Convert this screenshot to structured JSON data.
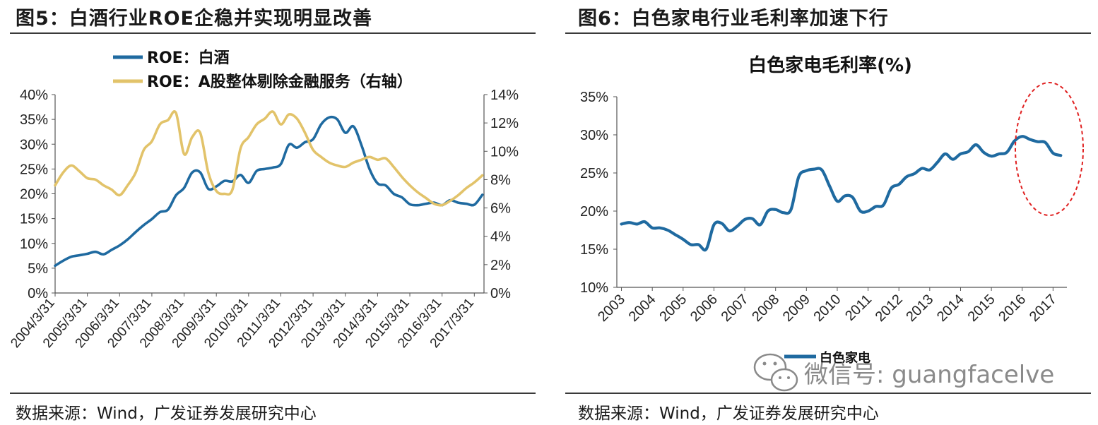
{
  "left_panel": {
    "title": "图5：白酒行业ROE企稳并实现明显改善",
    "source": "数据来源：Wind，广发证券发展研究中心"
  },
  "right_panel": {
    "title": "图6：白色家电行业毛利率加速下行",
    "source": "数据来源：Wind，广发证券发展研究中心"
  },
  "watermark": {
    "text": "微信号: guangfacelve",
    "icon": "wechat-icon"
  },
  "colors": {
    "blue": "#1f6aa0",
    "gold": "#e2c36a",
    "highlight": "#e02020"
  },
  "chart_data": [
    {
      "type": "line",
      "title": "",
      "xlabel": "",
      "ylabel": "",
      "x_tick_labels": [
        "2004/3/31",
        "2005/3/31",
        "2006/3/31",
        "2007/3/31",
        "2008/3/31",
        "2009/3/31",
        "2010/3/31",
        "2011/3/31",
        "2012/3/31",
        "2013/3/31",
        "2014/3/31",
        "2015/3/31",
        "2016/3/31",
        "2017/3/31"
      ],
      "y_left_ticks": [
        "0%",
        "5%",
        "10%",
        "15%",
        "20%",
        "25%",
        "30%",
        "35%",
        "40%"
      ],
      "y_right_ticks": [
        "0%",
        "2%",
        "4%",
        "6%",
        "8%",
        "10%",
        "12%",
        "14%"
      ],
      "ylim_left": [
        0,
        40
      ],
      "ylim_right": [
        0,
        14
      ],
      "legend_position": "top-left",
      "series": [
        {
          "name": "ROE：白酒",
          "axis": "left",
          "color": "#1f6aa0",
          "x": [
            2004.0,
            2004.25,
            2004.5,
            2004.75,
            2005.0,
            2005.25,
            2005.5,
            2005.75,
            2006.0,
            2006.25,
            2006.5,
            2006.75,
            2007.0,
            2007.25,
            2007.5,
            2007.75,
            2008.0,
            2008.25,
            2008.5,
            2008.75,
            2009.0,
            2009.25,
            2009.5,
            2009.75,
            2010.0,
            2010.25,
            2010.5,
            2010.75,
            2011.0,
            2011.25,
            2011.5,
            2011.75,
            2012.0,
            2012.25,
            2012.5,
            2012.75,
            2013.0,
            2013.25,
            2013.5,
            2013.75,
            2014.0,
            2014.25,
            2014.5,
            2014.75,
            2015.0,
            2015.25,
            2015.5,
            2015.75,
            2016.0,
            2016.25,
            2016.5,
            2016.75,
            2017.0,
            2017.25
          ],
          "values": [
            5.5,
            6.5,
            7.3,
            7.6,
            7.9,
            8.3,
            7.8,
            8.7,
            9.6,
            10.8,
            12.3,
            13.7,
            14.9,
            16.3,
            16.8,
            19.7,
            21.2,
            24.3,
            24.3,
            21.0,
            21.5,
            22.6,
            22.5,
            23.8,
            22.2,
            24.6,
            25.0,
            25.3,
            26.0,
            29.9,
            29.3,
            30.4,
            31.0,
            34.0,
            35.4,
            35.0,
            32.3,
            33.6,
            29.8,
            25.0,
            22.1,
            21.7,
            20.0,
            19.3,
            17.9,
            17.7,
            18.0,
            18.2,
            17.7,
            18.7,
            18.2,
            18.0,
            17.8,
            19.8
          ]
        },
        {
          "name": "ROE：A股整体剔除金融服务（右轴）",
          "axis": "right",
          "color": "#e2c36a",
          "x": [
            2004.0,
            2004.25,
            2004.5,
            2004.75,
            2005.0,
            2005.25,
            2005.5,
            2005.75,
            2006.0,
            2006.25,
            2006.5,
            2006.75,
            2007.0,
            2007.25,
            2007.5,
            2007.75,
            2008.0,
            2008.25,
            2008.5,
            2008.75,
            2009.0,
            2009.25,
            2009.5,
            2009.75,
            2010.0,
            2010.25,
            2010.5,
            2010.75,
            2011.0,
            2011.25,
            2011.5,
            2011.75,
            2012.0,
            2012.25,
            2012.5,
            2012.75,
            2013.0,
            2013.25,
            2013.5,
            2013.75,
            2014.0,
            2014.25,
            2014.5,
            2014.75,
            2015.0,
            2015.25,
            2015.5,
            2015.75,
            2016.0,
            2016.25,
            2016.5,
            2016.75,
            2017.0,
            2017.25
          ],
          "values": [
            7.6,
            8.5,
            9.0,
            8.6,
            8.1,
            8.0,
            7.6,
            7.3,
            6.9,
            7.6,
            8.5,
            10.1,
            10.7,
            11.9,
            12.2,
            12.7,
            9.8,
            11.0,
            11.3,
            8.5,
            7.2,
            7.0,
            7.3,
            10.2,
            11.0,
            11.9,
            12.3,
            12.8,
            11.9,
            12.6,
            12.3,
            11.3,
            10.1,
            9.6,
            9.2,
            9.0,
            8.9,
            9.2,
            9.4,
            9.6,
            9.4,
            9.5,
            8.9,
            8.2,
            7.6,
            7.1,
            6.7,
            6.3,
            6.2,
            6.5,
            6.9,
            7.4,
            7.8,
            8.3
          ]
        }
      ]
    },
    {
      "type": "line",
      "title": "白色家电毛利率(%)",
      "xlabel": "",
      "ylabel": "",
      "x_tick_labels": [
        "2003",
        "2004",
        "2005",
        "2006",
        "2007",
        "2008",
        "2009",
        "2010",
        "2011",
        "2012",
        "2013",
        "2014",
        "2015",
        "2016",
        "2017"
      ],
      "y_ticks": [
        "10%",
        "15%",
        "20%",
        "25%",
        "30%",
        "35%"
      ],
      "ylim": [
        10,
        35
      ],
      "legend_position": "bottom",
      "annotation": "red dashed ellipse highlighting 2016–2017 decline",
      "series": [
        {
          "name": "白色家电",
          "color": "#1f6aa0",
          "x": [
            2003.0,
            2003.25,
            2003.5,
            2003.75,
            2004.0,
            2004.25,
            2004.5,
            2004.75,
            2005.0,
            2005.25,
            2005.5,
            2005.75,
            2006.0,
            2006.25,
            2006.5,
            2006.75,
            2007.0,
            2007.25,
            2007.5,
            2007.75,
            2008.0,
            2008.25,
            2008.5,
            2008.75,
            2009.0,
            2009.25,
            2009.5,
            2009.75,
            2010.0,
            2010.25,
            2010.5,
            2010.75,
            2011.0,
            2011.25,
            2011.5,
            2011.75,
            2012.0,
            2012.25,
            2012.5,
            2012.75,
            2013.0,
            2013.25,
            2013.5,
            2013.75,
            2014.0,
            2014.25,
            2014.5,
            2014.75,
            2015.0,
            2015.25,
            2015.5,
            2015.75,
            2016.0,
            2016.25,
            2016.5,
            2016.75,
            2017.0,
            2017.25
          ],
          "values": [
            18.3,
            18.5,
            18.3,
            18.6,
            17.8,
            17.8,
            17.5,
            16.9,
            16.3,
            15.6,
            15.6,
            15.0,
            18.2,
            18.4,
            17.4,
            18.0,
            18.9,
            19.0,
            18.2,
            20.0,
            20.2,
            19.8,
            20.2,
            24.5,
            25.3,
            25.5,
            25.4,
            23.3,
            21.3,
            22.0,
            21.8,
            20.0,
            20.0,
            20.6,
            20.8,
            23.0,
            23.5,
            24.5,
            24.9,
            25.6,
            25.4,
            26.4,
            27.5,
            26.8,
            27.5,
            27.8,
            28.7,
            27.7,
            27.2,
            27.5,
            27.7,
            29.2,
            29.8,
            29.4,
            29.1,
            29.0,
            27.6,
            27.3
          ]
        }
      ]
    }
  ]
}
